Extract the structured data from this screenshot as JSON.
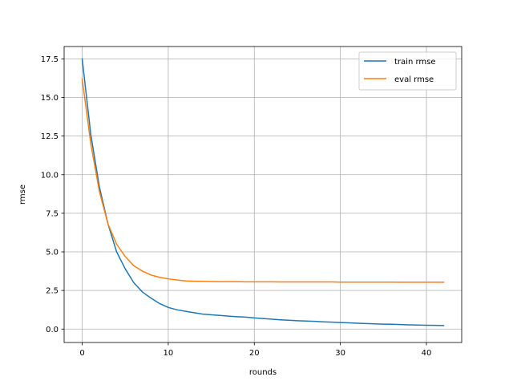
{
  "chart_data": {
    "type": "line",
    "title": "",
    "xlabel": "rounds",
    "ylabel": "rmse",
    "xlim": [
      -2.1,
      44.1
    ],
    "ylim": [
      -0.87,
      18.3
    ],
    "xticks": [
      0,
      10,
      20,
      30,
      40
    ],
    "xtick_labels": [
      "0",
      "10",
      "20",
      "30",
      "40"
    ],
    "yticks": [
      0,
      2.5,
      5,
      7.5,
      10,
      12.5,
      15,
      17.5
    ],
    "ytick_labels": [
      "0.0",
      "2.5",
      "5.0",
      "7.5",
      "10.0",
      "12.5",
      "15.0",
      "17.5"
    ],
    "grid": true,
    "legend_position": "top-right",
    "x": [
      0,
      1,
      2,
      3,
      4,
      5,
      6,
      7,
      8,
      9,
      10,
      11,
      12,
      13,
      14,
      15,
      16,
      17,
      18,
      19,
      20,
      21,
      22,
      23,
      24,
      25,
      26,
      27,
      28,
      29,
      30,
      31,
      32,
      33,
      34,
      35,
      36,
      37,
      38,
      39,
      40,
      41,
      42
    ],
    "series": [
      {
        "name": "train rmse",
        "color": "#1f77b4",
        "values": [
          17.5,
          12.6,
          9.2,
          6.8,
          5.0,
          3.9,
          3.0,
          2.4,
          2.0,
          1.65,
          1.4,
          1.25,
          1.15,
          1.06,
          0.97,
          0.92,
          0.88,
          0.84,
          0.8,
          0.77,
          0.72,
          0.68,
          0.64,
          0.6,
          0.57,
          0.54,
          0.52,
          0.5,
          0.47,
          0.45,
          0.42,
          0.4,
          0.38,
          0.36,
          0.34,
          0.32,
          0.31,
          0.29,
          0.27,
          0.26,
          0.25,
          0.24,
          0.23
        ]
      },
      {
        "name": "eval rmse",
        "color": "#ff7f0e",
        "values": [
          16.2,
          12.0,
          8.9,
          6.8,
          5.5,
          4.7,
          4.1,
          3.75,
          3.5,
          3.35,
          3.25,
          3.18,
          3.12,
          3.1,
          3.09,
          3.08,
          3.07,
          3.07,
          3.07,
          3.06,
          3.06,
          3.06,
          3.06,
          3.05,
          3.05,
          3.05,
          3.05,
          3.05,
          3.05,
          3.05,
          3.04,
          3.04,
          3.04,
          3.04,
          3.04,
          3.04,
          3.04,
          3.03,
          3.03,
          3.03,
          3.03,
          3.03,
          3.03
        ]
      }
    ]
  }
}
